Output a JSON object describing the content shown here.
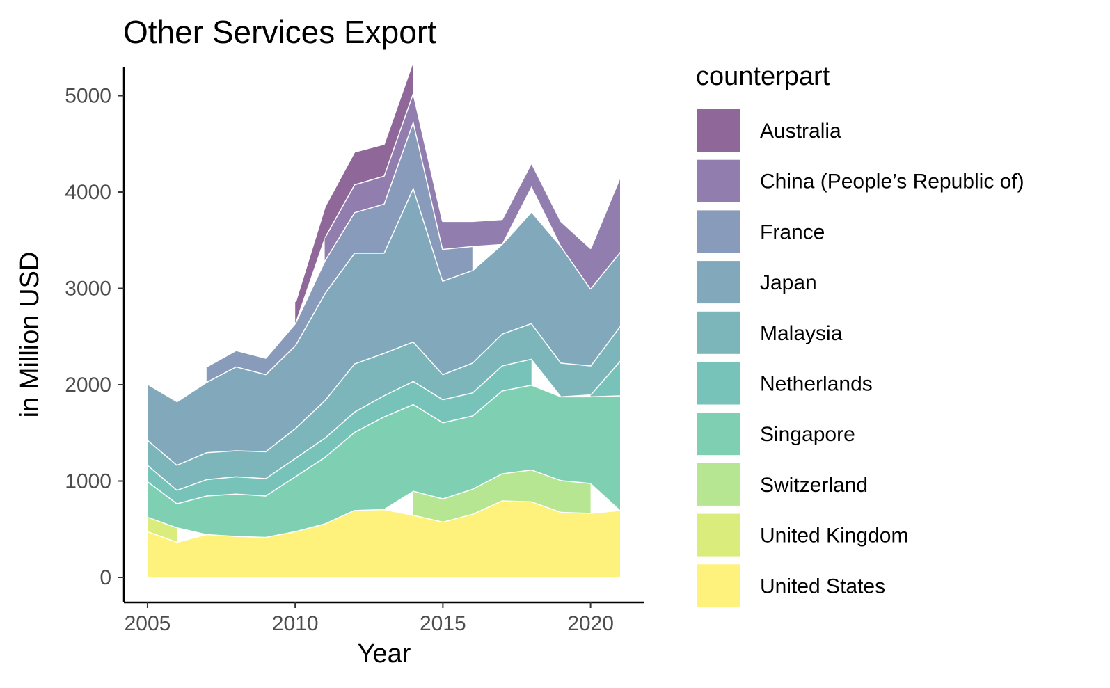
{
  "chart_data": {
    "type": "area",
    "stacked": true,
    "title": "Other Services Export",
    "xlabel": "Year",
    "ylabel": "in Million USD",
    "xlim": [
      2004.2,
      2021.8
    ],
    "ylim": [
      -260,
      5300
    ],
    "x_ticks": [
      2005,
      2010,
      2015,
      2020
    ],
    "y_ticks": [
      0,
      1000,
      2000,
      3000,
      4000,
      5000
    ],
    "grid": false,
    "legend_title": "counterpart",
    "legend_position": "right",
    "x": [
      2005,
      2006,
      2007,
      2008,
      2009,
      2010,
      2011,
      2012,
      2013,
      2014,
      2015,
      2016,
      2017,
      2018,
      2019,
      2020,
      2021
    ],
    "series": [
      {
        "name": "United States",
        "color": "#FDE725",
        "values": [
          480,
          370,
          450,
          430,
          420,
          480,
          560,
          700,
          710,
          650,
          580,
          660,
          800,
          790,
          680,
          670,
          700
        ]
      },
      {
        "name": "United Kingdom",
        "color": "#C2DF23",
        "values": [
          150,
          150,
          null,
          null,
          null,
          null,
          null,
          null,
          null,
          null,
          null,
          null,
          null,
          null,
          null,
          null,
          null
        ]
      },
      {
        "name": "Switzerland",
        "color": "#86D549",
        "values": [
          null,
          null,
          null,
          null,
          null,
          null,
          null,
          null,
          null,
          250,
          240,
          260,
          280,
          330,
          330,
          310,
          null
        ]
      },
      {
        "name": "Singapore",
        "color": "#2AB07F",
        "values": [
          370,
          250,
          400,
          440,
          430,
          570,
          690,
          810,
          960,
          900,
          790,
          760,
          860,
          880,
          870,
          900,
          1190
        ]
      },
      {
        "name": "Netherlands",
        "color": "#1E9B8A",
        "values": [
          170,
          140,
          170,
          180,
          180,
          190,
          200,
          210,
          220,
          240,
          240,
          240,
          260,
          270,
          null,
          20,
          360
        ]
      },
      {
        "name": "Malaysia",
        "color": "#25858E",
        "values": [
          260,
          260,
          280,
          270,
          280,
          310,
          390,
          500,
          440,
          410,
          260,
          310,
          330,
          370,
          350,
          300,
          360
        ]
      },
      {
        "name": "Japan",
        "color": "#2D708E",
        "values": [
          580,
          660,
          730,
          870,
          800,
          860,
          1110,
          1150,
          1040,
          1600,
          970,
          960,
          930,
          1160,
          1210,
          800,
          770
        ]
      },
      {
        "name": "France",
        "color": "#38598C",
        "values": [
          null,
          null,
          160,
          170,
          170,
          230,
          340,
          420,
          510,
          690,
          330,
          250,
          null,
          260,
          null,
          null,
          null
        ]
      },
      {
        "name": "China (People’s Republic of)",
        "color": "#482878",
        "values": [
          null,
          null,
          null,
          null,
          null,
          null,
          240,
          290,
          290,
          300,
          290,
          260,
          260,
          250,
          260,
          420,
          780
        ]
      },
      {
        "name": "Australia",
        "color": "#440154",
        "values": [
          null,
          null,
          null,
          null,
          null,
          220,
          320,
          340,
          330,
          330,
          null,
          null,
          260,
          null,
          null,
          null,
          null
        ]
      }
    ]
  }
}
